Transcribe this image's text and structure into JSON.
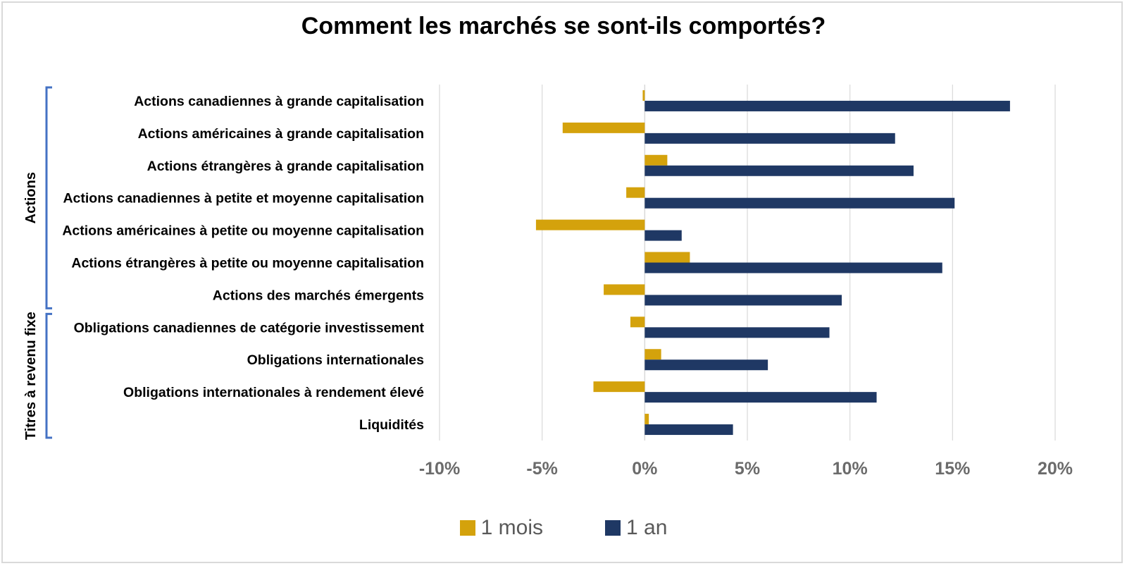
{
  "chart_data": {
    "type": "bar",
    "orientation": "horizontal",
    "title": "Comment les marchés se sont-ils comportés?",
    "categories": [
      "Actions canadiennes à grande capitalisation",
      "Actions américaines à grande capitalisation",
      "Actions étrangères à grande capitalisation",
      "Actions canadiennes à petite et moyenne capitalisation",
      "Actions américaines à petite ou moyenne capitalisation",
      "Actions étrangères à petite ou moyenne capitalisation",
      "Actions des marchés émergents",
      "Obligations canadiennes de catégorie investissement",
      "Obligations internationales",
      "Obligations internationales à rendement élevé",
      "Liquidités"
    ],
    "groups": [
      {
        "label": "Actions",
        "from": 0,
        "to": 6
      },
      {
        "label": "Titres à revenu fixe",
        "from": 7,
        "to": 10
      }
    ],
    "series": [
      {
        "name": "1 mois",
        "color": "#d4a20c",
        "values": [
          -0.1,
          -4.0,
          1.1,
          -0.9,
          -5.3,
          2.2,
          -2.0,
          -0.7,
          0.8,
          -2.5,
          0.2
        ]
      },
      {
        "name": "1 an",
        "color": "#1f3864",
        "values": [
          17.8,
          12.2,
          13.1,
          15.1,
          1.8,
          14.5,
          9.6,
          9.0,
          6.0,
          11.3,
          4.3
        ]
      }
    ],
    "xlim": [
      -10,
      20
    ],
    "ticks": [
      -10,
      -5,
      0,
      5,
      10,
      15,
      20
    ],
    "tick_labels": [
      "-10%",
      "-5%",
      "0%",
      "5%",
      "10%",
      "15%",
      "20%"
    ],
    "grid": true,
    "legend_position": "bottom"
  },
  "colors": {
    "gridline": "#d9d9d9",
    "bracket": "#4472c4"
  }
}
